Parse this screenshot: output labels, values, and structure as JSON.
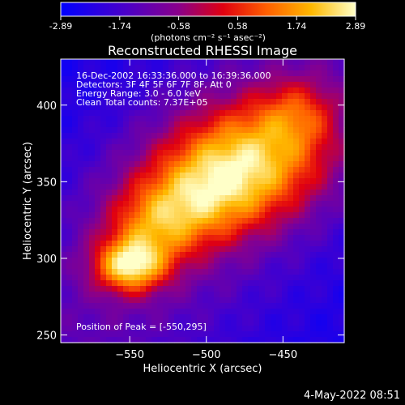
{
  "chart_data": {
    "type": "heatmap",
    "title": "Reconstructed RHESSI Image",
    "xlabel": "Heliocentric X (arcsec)",
    "ylabel": "Heliocentric Y (arcsec)",
    "xlim": [
      -595,
      -410
    ],
    "ylim": [
      245,
      430
    ],
    "xticks": [
      -550,
      -500,
      -450
    ],
    "yticks": [
      250,
      300,
      350,
      400
    ],
    "colorbar": {
      "label": "(photons cm⁻² s⁻¹ asec⁻²)",
      "ticks": [
        "-2.89",
        "-1.74",
        "-0.58",
        "0.58",
        "1.74",
        "2.89"
      ],
      "range": [
        -2.89,
        2.89
      ]
    },
    "annotations": [
      "16-Dec-2002 16:33:36.000 to 16:39:36.000",
      "Detectors: 3F 4F 5F 6F 7F 8F, Att 0",
      "Energy Range: 3.0 - 6.0 keV",
      "Clean     Total counts: 7.37E+05"
    ],
    "peak_label": "Position of Peak = [-550,295]",
    "peak": [
      -550,
      295
    ],
    "sources": [
      {
        "x": -550,
        "y": 295,
        "sx": 16,
        "sy": 12,
        "amp": 3.6
      },
      {
        "x": -470,
        "y": 365,
        "sx": 36,
        "sy": 26,
        "amp": 3.0
      },
      {
        "x": -505,
        "y": 340,
        "sx": 30,
        "sy": 22,
        "amp": 2.2
      },
      {
        "x": -535,
        "y": 320,
        "sx": 22,
        "sy": 18,
        "amp": 1.9
      },
      {
        "x": -440,
        "y": 395,
        "sx": 18,
        "sy": 16,
        "amp": 1.4
      }
    ]
  },
  "footer": {
    "date": "4-May-2022 08:51"
  }
}
